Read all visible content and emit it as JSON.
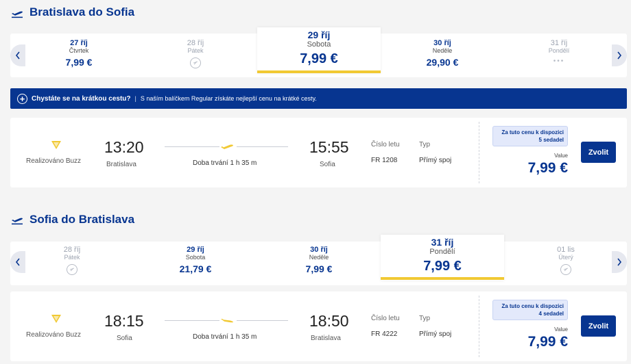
{
  "colors": {
    "brand": "#073590",
    "accent": "#f1c933",
    "background": "#f4f4f4"
  },
  "outbound": {
    "title": "Bratislava do Sofia",
    "dates": [
      {
        "date": "27 říj",
        "weekday": "Čtvrtek",
        "price": "7,99 €",
        "state": "available"
      },
      {
        "date": "28 říj",
        "weekday": "Pátek",
        "price": "",
        "state": "unavailable"
      },
      {
        "date": "29 říj",
        "weekday": "Sobota",
        "price": "7,99 €",
        "state": "selected"
      },
      {
        "date": "30 říj",
        "weekday": "Neděle",
        "price": "29,90 €",
        "state": "available"
      },
      {
        "date": "31 říj",
        "weekday": "Pondělí",
        "price": "",
        "state": "loading"
      }
    ],
    "flight": {
      "operator": "Realizováno Buzz",
      "depart_time": "13:20",
      "depart_city": "Bratislava",
      "duration": "Doba trvání 1 h 35 m",
      "arrive_time": "15:55",
      "arrive_city": "Sofia",
      "flight_no_label": "Číslo letu",
      "flight_no": "FR 1208",
      "type_label": "Typ",
      "type": "Přímý spoj",
      "notice_line1": "Za tuto cenu k dispozici",
      "notice_line2": "5 sedadel",
      "fare_label": "Value",
      "price": "7,99 €",
      "button": "Zvolit"
    }
  },
  "banner": {
    "question": "Chystáte se na krátkou cestu?",
    "separator": "|",
    "text": "S naším balíčkem Regular získáte nejlepší cenu na krátké cesty."
  },
  "inbound": {
    "title": "Sofia do Bratislava",
    "dates": [
      {
        "date": "28 říj",
        "weekday": "Pátek",
        "price": "",
        "state": "unavailable"
      },
      {
        "date": "29 říj",
        "weekday": "Sobota",
        "price": "21,79 €",
        "state": "available"
      },
      {
        "date": "30 říj",
        "weekday": "Neděle",
        "price": "7,99 €",
        "state": "available"
      },
      {
        "date": "31 říj",
        "weekday": "Pondělí",
        "price": "7,99 €",
        "state": "selected"
      },
      {
        "date": "01 lis",
        "weekday": "Úterý",
        "price": "",
        "state": "unavailable"
      }
    ],
    "flight": {
      "operator": "Realizováno Buzz",
      "depart_time": "18:15",
      "depart_city": "Sofia",
      "duration": "Doba trvání 1 h 35 m",
      "arrive_time": "18:50",
      "arrive_city": "Bratislava",
      "flight_no_label": "Číslo letu",
      "flight_no": "FR 4222",
      "type_label": "Typ",
      "type": "Přímý spoj",
      "notice_line1": "Za tuto cenu k dispozici",
      "notice_line2": "4 sedadel",
      "fare_label": "Value",
      "price": "7,99 €",
      "button": "Zvolit"
    }
  },
  "icons": {
    "takeoff": "airplane-takeoff-icon",
    "landing": "airplane-landing-icon",
    "prev": "chevron-left-icon",
    "next": "chevron-right-icon",
    "no_flight": "no-flight-icon",
    "logo": "ryanair-harp-icon",
    "plus": "plus-circle-icon"
  }
}
